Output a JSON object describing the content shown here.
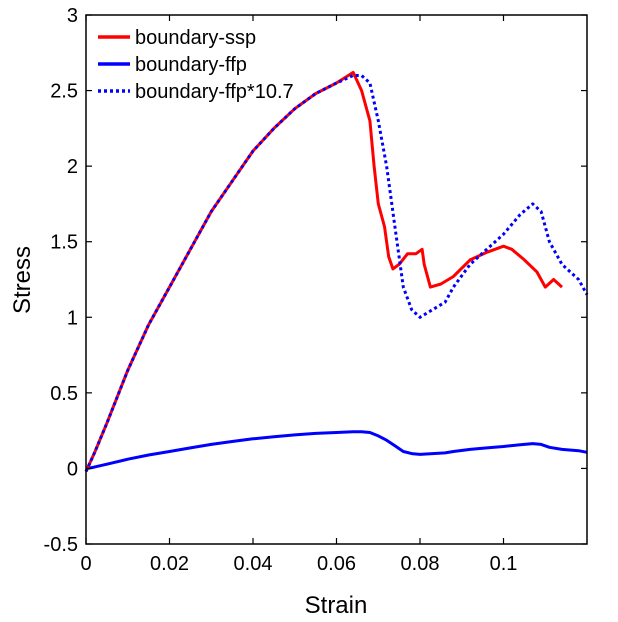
{
  "chart_data": {
    "type": "line",
    "title": "",
    "xlabel": "Strain",
    "ylabel": "Stress",
    "xlim": [
      0,
      0.12
    ],
    "ylim": [
      -0.5,
      3
    ],
    "xticks": [
      0,
      0.02,
      0.04,
      0.06,
      0.08,
      0.1
    ],
    "xtick_labels": [
      "0",
      "0.02",
      "0.04",
      "0.06",
      "0.08",
      "0.1"
    ],
    "yticks": [
      -0.5,
      0,
      0.5,
      1,
      1.5,
      2,
      2.5,
      3
    ],
    "ytick_labels": [
      "-0.5",
      "0",
      "0.5",
      "1",
      "1.5",
      "2",
      "2.5",
      "3"
    ],
    "grid": false,
    "legend_position": "top-left",
    "series": [
      {
        "name": "boundary-ssp",
        "color": "#ff0000",
        "style": "solid",
        "x": [
          0,
          0.002,
          0.005,
          0.01,
          0.015,
          0.02,
          0.025,
          0.03,
          0.035,
          0.04,
          0.045,
          0.05,
          0.055,
          0.06,
          0.064,
          0.066,
          0.068,
          0.069,
          0.07,
          0.0715,
          0.0725,
          0.0735,
          0.075,
          0.077,
          0.079,
          0.0805,
          0.081,
          0.0825,
          0.085,
          0.088,
          0.092,
          0.096,
          0.1,
          0.102,
          0.105,
          0.108,
          0.11,
          0.112,
          0.114
        ],
        "y": [
          -0.02,
          0.1,
          0.3,
          0.65,
          0.95,
          1.2,
          1.45,
          1.7,
          1.9,
          2.1,
          2.25,
          2.38,
          2.48,
          2.55,
          2.62,
          2.5,
          2.3,
          2.0,
          1.75,
          1.6,
          1.4,
          1.32,
          1.35,
          1.42,
          1.42,
          1.45,
          1.35,
          1.2,
          1.22,
          1.27,
          1.38,
          1.43,
          1.47,
          1.45,
          1.38,
          1.3,
          1.2,
          1.25,
          1.2
        ]
      },
      {
        "name": "boundary-ffp",
        "color": "#0000ff",
        "style": "solid",
        "x": [
          0,
          0.002,
          0.005,
          0.01,
          0.015,
          0.02,
          0.025,
          0.03,
          0.035,
          0.04,
          0.045,
          0.05,
          0.055,
          0.06,
          0.064,
          0.066,
          0.068,
          0.07,
          0.072,
          0.074,
          0.076,
          0.078,
          0.08,
          0.083,
          0.086,
          0.088,
          0.092,
          0.096,
          0.1,
          0.104,
          0.107,
          0.109,
          0.111,
          0.114,
          0.118,
          0.12
        ],
        "y": [
          -0.002,
          0.009,
          0.028,
          0.061,
          0.089,
          0.112,
          0.136,
          0.159,
          0.178,
          0.196,
          0.21,
          0.222,
          0.232,
          0.238,
          0.243,
          0.243,
          0.238,
          0.215,
          0.187,
          0.15,
          0.112,
          0.098,
          0.093,
          0.098,
          0.103,
          0.112,
          0.126,
          0.136,
          0.145,
          0.157,
          0.164,
          0.159,
          0.14,
          0.126,
          0.117,
          0.107
        ]
      },
      {
        "name": "boundary-ffp*10.7",
        "color": "#0000ff",
        "style": "dotted",
        "x": [
          0,
          0.002,
          0.005,
          0.01,
          0.015,
          0.02,
          0.025,
          0.03,
          0.035,
          0.04,
          0.045,
          0.05,
          0.055,
          0.06,
          0.064,
          0.066,
          0.068,
          0.07,
          0.072,
          0.074,
          0.076,
          0.078,
          0.08,
          0.083,
          0.086,
          0.088,
          0.092,
          0.096,
          0.1,
          0.104,
          0.107,
          0.109,
          0.111,
          0.114,
          0.118,
          0.12
        ],
        "y": [
          -0.02,
          0.1,
          0.3,
          0.65,
          0.95,
          1.2,
          1.45,
          1.7,
          1.9,
          2.1,
          2.25,
          2.38,
          2.48,
          2.55,
          2.6,
          2.6,
          2.55,
          2.3,
          2.0,
          1.6,
          1.2,
          1.05,
          1.0,
          1.05,
          1.1,
          1.2,
          1.35,
          1.45,
          1.55,
          1.68,
          1.75,
          1.7,
          1.5,
          1.35,
          1.25,
          1.15
        ]
      }
    ]
  }
}
